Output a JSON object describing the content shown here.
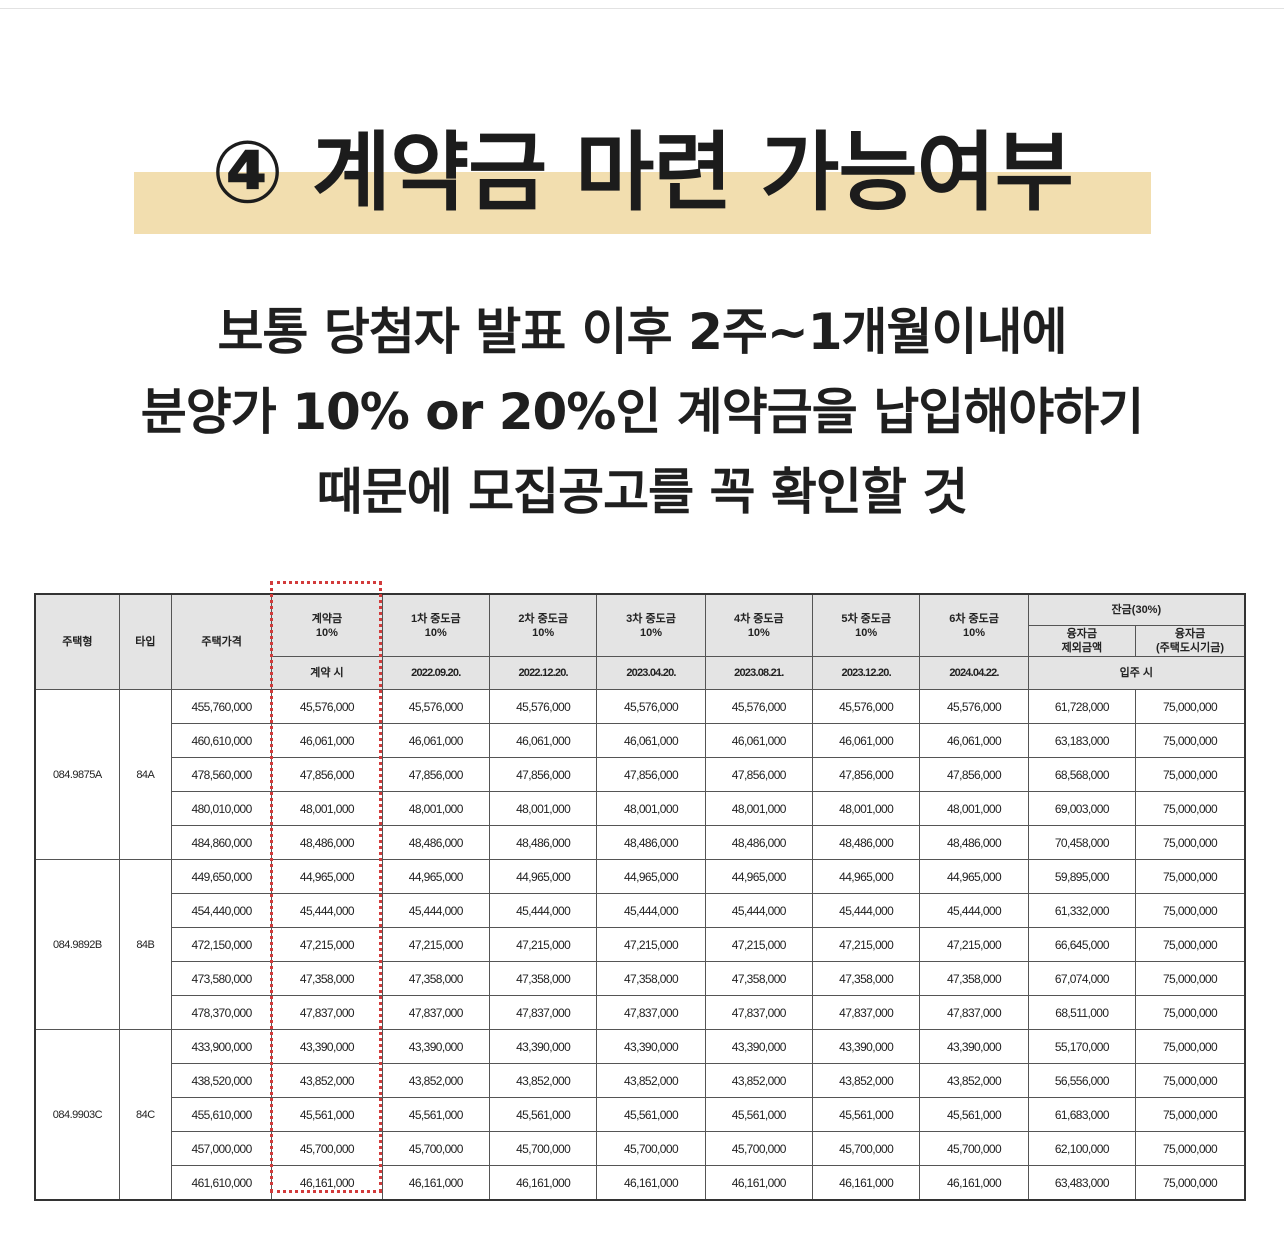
{
  "title": "④ 계약금 마련 가능여부",
  "subtitle": {
    "line1": "보통 당첨자 발표 이후 2주~1개월이내에",
    "line2": "분양가 10% or 20%인 계약금을 납입해야하기",
    "line3": "때문에 모집공고를 꼭 확인할 것"
  },
  "table": {
    "headers": {
      "housing_type": "주택형",
      "type": "타입",
      "price": "주택가격",
      "deposit_name": "계약금",
      "deposit_pct": "10%",
      "deposit_timing": "계약 시",
      "interim": [
        {
          "name": "1차 중도금",
          "pct": "10%",
          "date": "2022.09.20."
        },
        {
          "name": "2차 중도금",
          "pct": "10%",
          "date": "2022.12.20."
        },
        {
          "name": "3차 중도금",
          "pct": "10%",
          "date": "2023.04.20."
        },
        {
          "name": "4차 중도금",
          "pct": "10%",
          "date": "2023.08.21."
        },
        {
          "name": "5차 중도금",
          "pct": "10%",
          "date": "2023.12.20."
        },
        {
          "name": "6차 중도금",
          "pct": "10%",
          "date": "2024.04.22."
        }
      ],
      "balance": "잔금(30%)",
      "balance_excl_line1": "융자금",
      "balance_excl_line2": "제외금액",
      "loan_line1": "융자금",
      "loan_line2": "(주택도시기금)",
      "balance_timing": "입주 시"
    },
    "groups": [
      {
        "housing_type": "084.9875A",
        "type": "84A",
        "rows": [
          {
            "price": "455,760,000",
            "deposit": "45,576,000",
            "interim": "45,576,000",
            "balance": "61,728,000",
            "loan": "75,000,000"
          },
          {
            "price": "460,610,000",
            "deposit": "46,061,000",
            "interim": "46,061,000",
            "balance": "63,183,000",
            "loan": "75,000,000"
          },
          {
            "price": "478,560,000",
            "deposit": "47,856,000",
            "interim": "47,856,000",
            "balance": "68,568,000",
            "loan": "75,000,000"
          },
          {
            "price": "480,010,000",
            "deposit": "48,001,000",
            "interim": "48,001,000",
            "balance": "69,003,000",
            "loan": "75,000,000"
          },
          {
            "price": "484,860,000",
            "deposit": "48,486,000",
            "interim": "48,486,000",
            "balance": "70,458,000",
            "loan": "75,000,000"
          }
        ]
      },
      {
        "housing_type": "084.9892B",
        "type": "84B",
        "rows": [
          {
            "price": "449,650,000",
            "deposit": "44,965,000",
            "interim": "44,965,000",
            "balance": "59,895,000",
            "loan": "75,000,000"
          },
          {
            "price": "454,440,000",
            "deposit": "45,444,000",
            "interim": "45,444,000",
            "balance": "61,332,000",
            "loan": "75,000,000"
          },
          {
            "price": "472,150,000",
            "deposit": "47,215,000",
            "interim": "47,215,000",
            "balance": "66,645,000",
            "loan": "75,000,000"
          },
          {
            "price": "473,580,000",
            "deposit": "47,358,000",
            "interim": "47,358,000",
            "balance": "67,074,000",
            "loan": "75,000,000"
          },
          {
            "price": "478,370,000",
            "deposit": "47,837,000",
            "interim": "47,837,000",
            "balance": "68,511,000",
            "loan": "75,000,000"
          }
        ]
      },
      {
        "housing_type": "084.9903C",
        "type": "84C",
        "rows": [
          {
            "price": "433,900,000",
            "deposit": "43,390,000",
            "interim": "43,390,000",
            "balance": "55,170,000",
            "loan": "75,000,000"
          },
          {
            "price": "438,520,000",
            "deposit": "43,852,000",
            "interim": "43,852,000",
            "balance": "56,556,000",
            "loan": "75,000,000"
          },
          {
            "price": "455,610,000",
            "deposit": "45,561,000",
            "interim": "45,561,000",
            "balance": "61,683,000",
            "loan": "75,000,000"
          },
          {
            "price": "457,000,000",
            "deposit": "45,700,000",
            "interim": "45,700,000",
            "balance": "62,100,000",
            "loan": "75,000,000"
          },
          {
            "price": "461,610,000",
            "deposit": "46,161,000",
            "interim": "46,161,000",
            "balance": "63,483,000",
            "loan": "75,000,000"
          }
        ]
      }
    ]
  },
  "colors": {
    "highlight": "#f2deaf",
    "header_bg": "#e4e4e4",
    "dotted_border": "#d23b3b"
  }
}
